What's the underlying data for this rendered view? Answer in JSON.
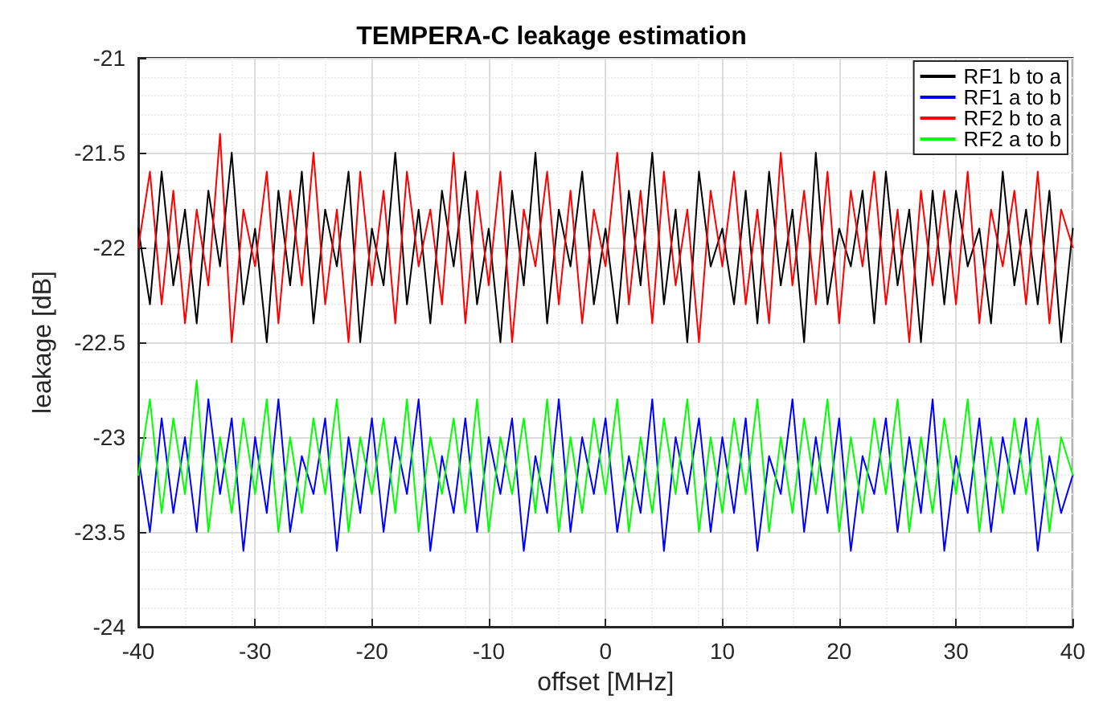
{
  "chart_data": {
    "type": "line",
    "title": "TEMPERA-C leakage estimation",
    "xlabel": "offset [MHz]",
    "ylabel": "leakage [dB]",
    "x": [
      -40,
      -39,
      -38,
      -37,
      -36,
      -35,
      -34,
      -33,
      -32,
      -31,
      -30,
      -29,
      -28,
      -27,
      -26,
      -25,
      -24,
      -23,
      -22,
      -21,
      -20,
      -19,
      -18,
      -17,
      -16,
      -15,
      -14,
      -13,
      -12,
      -11,
      -10,
      -9,
      -8,
      -7,
      -6,
      -5,
      -4,
      -3,
      -2,
      -1,
      0,
      1,
      2,
      3,
      4,
      5,
      6,
      7,
      8,
      9,
      10,
      11,
      12,
      13,
      14,
      15,
      16,
      17,
      18,
      19,
      20,
      21,
      22,
      23,
      24,
      25,
      26,
      27,
      28,
      29,
      30,
      31,
      32,
      33,
      34,
      35,
      36,
      37,
      38,
      39,
      40
    ],
    "series": [
      {
        "name": "RF1 b to a",
        "color": "#000000",
        "values": [
          -21.9,
          -22.3,
          -21.6,
          -22.2,
          -21.8,
          -22.4,
          -21.7,
          -22.1,
          -21.5,
          -22.3,
          -21.9,
          -22.5,
          -21.7,
          -22.2,
          -21.6,
          -22.4,
          -21.8,
          -22.1,
          -21.6,
          -22.5,
          -21.9,
          -22.2,
          -21.5,
          -22.3,
          -21.8,
          -22.4,
          -21.7,
          -22.1,
          -21.6,
          -22.3,
          -21.9,
          -22.5,
          -21.7,
          -22.2,
          -21.5,
          -22.4,
          -21.8,
          -22.1,
          -21.6,
          -22.3,
          -21.9,
          -22.4,
          -21.7,
          -22.2,
          -21.5,
          -22.3,
          -21.8,
          -22.5,
          -21.6,
          -22.1,
          -21.9,
          -22.3,
          -21.7,
          -22.4,
          -21.6,
          -22.2,
          -21.8,
          -22.5,
          -21.5,
          -22.3,
          -21.9,
          -22.1,
          -21.7,
          -22.4,
          -21.6,
          -22.2,
          -21.8,
          -22.5,
          -21.7,
          -22.3,
          -21.7,
          -22.1,
          -21.9,
          -22.4,
          -21.6,
          -22.2,
          -21.8,
          -22.3,
          -21.7,
          -22.5,
          -21.9
        ]
      },
      {
        "name": "RF1 a to b",
        "color": "#0000ff",
        "values": [
          -23.1,
          -23.5,
          -22.9,
          -23.4,
          -23.0,
          -23.5,
          -22.8,
          -23.3,
          -22.9,
          -23.6,
          -23.0,
          -23.4,
          -22.8,
          -23.5,
          -23.1,
          -23.3,
          -22.9,
          -23.6,
          -23.0,
          -23.4,
          -22.9,
          -23.5,
          -23.0,
          -23.3,
          -22.8,
          -23.6,
          -23.1,
          -23.4,
          -22.9,
          -23.5,
          -23.0,
          -23.3,
          -22.9,
          -23.6,
          -23.1,
          -23.4,
          -22.8,
          -23.5,
          -23.0,
          -23.3,
          -22.9,
          -23.5,
          -23.1,
          -23.4,
          -22.8,
          -23.6,
          -23.0,
          -23.3,
          -22.9,
          -23.5,
          -23.0,
          -23.4,
          -22.9,
          -23.6,
          -23.1,
          -23.3,
          -22.8,
          -23.5,
          -23.0,
          -23.4,
          -22.9,
          -23.6,
          -23.1,
          -23.3,
          -22.9,
          -23.5,
          -23.0,
          -23.4,
          -22.8,
          -23.6,
          -23.1,
          -23.4,
          -22.9,
          -23.5,
          -23.0,
          -23.3,
          -22.9,
          -23.6,
          -23.1,
          -23.4,
          -23.2
        ]
      },
      {
        "name": "RF2 b to a",
        "color": "#ff0000",
        "values": [
          -22.0,
          -21.6,
          -22.3,
          -21.7,
          -22.4,
          -21.8,
          -22.2,
          -21.4,
          -22.5,
          -21.8,
          -22.1,
          -21.6,
          -22.4,
          -21.7,
          -22.2,
          -21.5,
          -22.3,
          -21.8,
          -22.5,
          -21.6,
          -22.2,
          -21.7,
          -22.4,
          -21.6,
          -22.1,
          -21.8,
          -22.3,
          -21.5,
          -22.4,
          -21.7,
          -22.2,
          -21.6,
          -22.5,
          -21.8,
          -22.1,
          -21.6,
          -22.3,
          -21.7,
          -22.4,
          -21.8,
          -22.1,
          -21.5,
          -22.3,
          -21.7,
          -22.4,
          -21.6,
          -22.2,
          -21.8,
          -22.5,
          -21.7,
          -22.1,
          -21.6,
          -22.3,
          -21.8,
          -22.4,
          -21.5,
          -22.2,
          -21.7,
          -22.3,
          -21.6,
          -22.4,
          -21.7,
          -22.1,
          -21.6,
          -22.3,
          -21.8,
          -22.5,
          -21.7,
          -22.2,
          -21.7,
          -22.3,
          -21.6,
          -22.4,
          -21.8,
          -22.1,
          -21.7,
          -22.3,
          -21.6,
          -22.4,
          -21.8,
          -22.0
        ]
      },
      {
        "name": "RF2 a to b",
        "color": "#00ff00",
        "values": [
          -23.2,
          -22.8,
          -23.4,
          -22.9,
          -23.3,
          -22.7,
          -23.5,
          -23.0,
          -23.4,
          -22.9,
          -23.3,
          -22.8,
          -23.5,
          -23.0,
          -23.4,
          -22.9,
          -23.3,
          -22.8,
          -23.5,
          -23.0,
          -23.3,
          -22.9,
          -23.4,
          -22.8,
          -23.5,
          -23.0,
          -23.3,
          -22.9,
          -23.4,
          -22.8,
          -23.5,
          -23.0,
          -23.3,
          -22.9,
          -23.4,
          -22.8,
          -23.5,
          -23.0,
          -23.4,
          -22.9,
          -23.3,
          -22.8,
          -23.5,
          -23.0,
          -23.4,
          -22.9,
          -23.3,
          -22.8,
          -23.5,
          -23.0,
          -23.4,
          -22.9,
          -23.3,
          -22.8,
          -23.5,
          -23.0,
          -23.4,
          -22.9,
          -23.3,
          -22.8,
          -23.5,
          -23.0,
          -23.4,
          -22.9,
          -23.3,
          -22.8,
          -23.5,
          -23.0,
          -23.4,
          -22.9,
          -23.3,
          -22.8,
          -23.5,
          -23.0,
          -23.4,
          -22.9,
          -23.3,
          -22.9,
          -23.5,
          -23.0,
          -23.2
        ]
      }
    ],
    "xlim": [
      -40,
      40
    ],
    "xticks": [
      -40,
      -30,
      -20,
      -10,
      0,
      10,
      20,
      30,
      40
    ],
    "ylim": [
      -24,
      -21
    ],
    "yticks": [
      -24,
      -23.5,
      -23,
      -22.5,
      -22,
      -21.5,
      -21
    ],
    "grid": true,
    "legend": "top right",
    "marker": "none",
    "line_style": "solid"
  }
}
